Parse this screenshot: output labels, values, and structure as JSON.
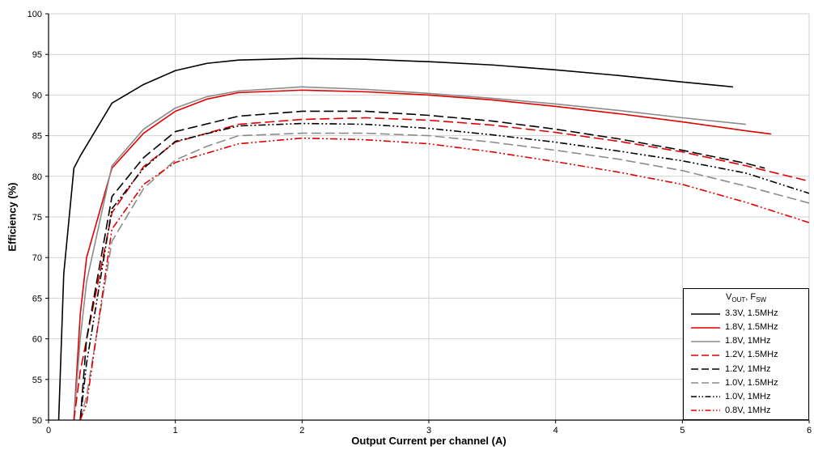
{
  "chart_data": {
    "type": "line",
    "title": "",
    "xlabel": "Output Current per channel (A)",
    "ylabel": "Efficiency (%)",
    "xlim": [
      0,
      6
    ],
    "ylim": [
      50,
      100
    ],
    "xticks": [
      0,
      1,
      2,
      3,
      4,
      5,
      6
    ],
    "yticks": [
      50,
      55,
      60,
      65,
      70,
      75,
      80,
      85,
      90,
      95,
      100
    ],
    "grid": true,
    "grid_color": "#d2d2d2",
    "axis_color": "#000000",
    "legend_position": "bottom-right",
    "legend": {
      "title_parts": [
        {
          "text": "V",
          "sub": false
        },
        {
          "text": "OUT",
          "sub": true
        },
        {
          "text": ", F",
          "sub": false
        },
        {
          "text": "SW",
          "sub": true
        }
      ]
    },
    "series": [
      {
        "name": "3.3V, 1.5MHz",
        "color": "#000000",
        "style": "solid",
        "x": [
          0.08,
          0.12,
          0.2,
          0.25,
          0.5,
          0.75,
          1,
          1.25,
          1.5,
          2,
          2.5,
          3,
          3.5,
          4,
          4.5,
          5,
          5.4
        ],
        "y": [
          50,
          68,
          81,
          82.5,
          89,
          91.3,
          93,
          93.9,
          94.3,
          94.5,
          94.4,
          94.1,
          93.7,
          93.1,
          92.4,
          91.6,
          91
        ]
      },
      {
        "name": "1.8V, 1.5MHz",
        "color": "#e00000",
        "style": "solid",
        "x": [
          0.2,
          0.25,
          0.3,
          0.5,
          0.75,
          1,
          1.25,
          1.5,
          2,
          2.5,
          3,
          3.5,
          4,
          4.5,
          5,
          5.5,
          5.7
        ],
        "y": [
          50,
          63,
          70,
          81,
          85.3,
          88,
          89.5,
          90.3,
          90.6,
          90.4,
          90,
          89.4,
          88.6,
          87.7,
          86.7,
          85.6,
          85.2
        ]
      },
      {
        "name": "1.8V, 1MHz",
        "color": "#8c8c8c",
        "style": "solid",
        "x": [
          0.2,
          0.25,
          0.3,
          0.5,
          0.75,
          1,
          1.25,
          1.5,
          2,
          2.5,
          3,
          3.5,
          4,
          4.5,
          5,
          5.5
        ],
        "y": [
          50,
          60,
          67,
          81.3,
          85.8,
          88.4,
          89.8,
          90.5,
          91,
          90.7,
          90.2,
          89.6,
          88.9,
          88.1,
          87.2,
          86.4
        ]
      },
      {
        "name": "1.2V, 1.5MHz",
        "color": "#e00000",
        "style": "dash",
        "x": [
          0.2,
          0.25,
          0.5,
          0.75,
          1,
          1.5,
          2,
          2.5,
          3,
          3.5,
          4,
          4.5,
          5,
          5.5,
          6
        ],
        "y": [
          50,
          56,
          75.5,
          81.2,
          84.2,
          86.4,
          87,
          87.2,
          86.9,
          86.3,
          85.4,
          84.3,
          83,
          81.3,
          79.4
        ]
      },
      {
        "name": "1.2V, 1MHz",
        "color": "#000000",
        "style": "dash",
        "x": [
          0.25,
          0.3,
          0.5,
          0.75,
          1,
          1.5,
          2,
          2.5,
          3,
          3.5,
          4,
          4.5,
          5,
          5.5,
          5.65
        ],
        "y": [
          50,
          60,
          77.5,
          82.3,
          85.5,
          87.4,
          88,
          88,
          87.5,
          86.8,
          85.8,
          84.6,
          83.2,
          81.6,
          81
        ]
      },
      {
        "name": "1.0V, 1.5MHz",
        "color": "#8c8c8c",
        "style": "dash",
        "x": [
          0.25,
          0.3,
          0.5,
          0.75,
          1,
          1.25,
          1.5,
          2,
          2.5,
          3,
          3.5,
          4,
          4.5,
          5,
          5.5,
          6
        ],
        "y": [
          50,
          53,
          72,
          78.5,
          82,
          83.7,
          85,
          85.3,
          85.3,
          85,
          84.2,
          83.2,
          82.1,
          80.7,
          78.8,
          76.7
        ]
      },
      {
        "name": "1.0V, 1MHz",
        "color": "#000000",
        "style": "dashdotdot",
        "x": [
          0.25,
          0.3,
          0.5,
          0.75,
          1,
          1.5,
          2,
          2.5,
          3,
          3.5,
          4,
          4.5,
          5,
          5.5,
          6
        ],
        "y": [
          50,
          57,
          76,
          81,
          84.3,
          86.2,
          86.5,
          86.4,
          85.9,
          85.1,
          84.2,
          83.1,
          81.9,
          80.4,
          77.9
        ]
      },
      {
        "name": "0.8V, 1MHz",
        "color": "#e00000",
        "style": "dashdotdot",
        "x": [
          0.25,
          0.3,
          0.5,
          0.75,
          1,
          1.5,
          2,
          2.5,
          3,
          3.5,
          4,
          4.5,
          5,
          5.5,
          6
        ],
        "y": [
          50,
          52,
          73.5,
          79,
          81.7,
          84,
          84.7,
          84.5,
          84,
          83,
          81.8,
          80.5,
          79,
          76.8,
          74.3
        ]
      }
    ]
  }
}
